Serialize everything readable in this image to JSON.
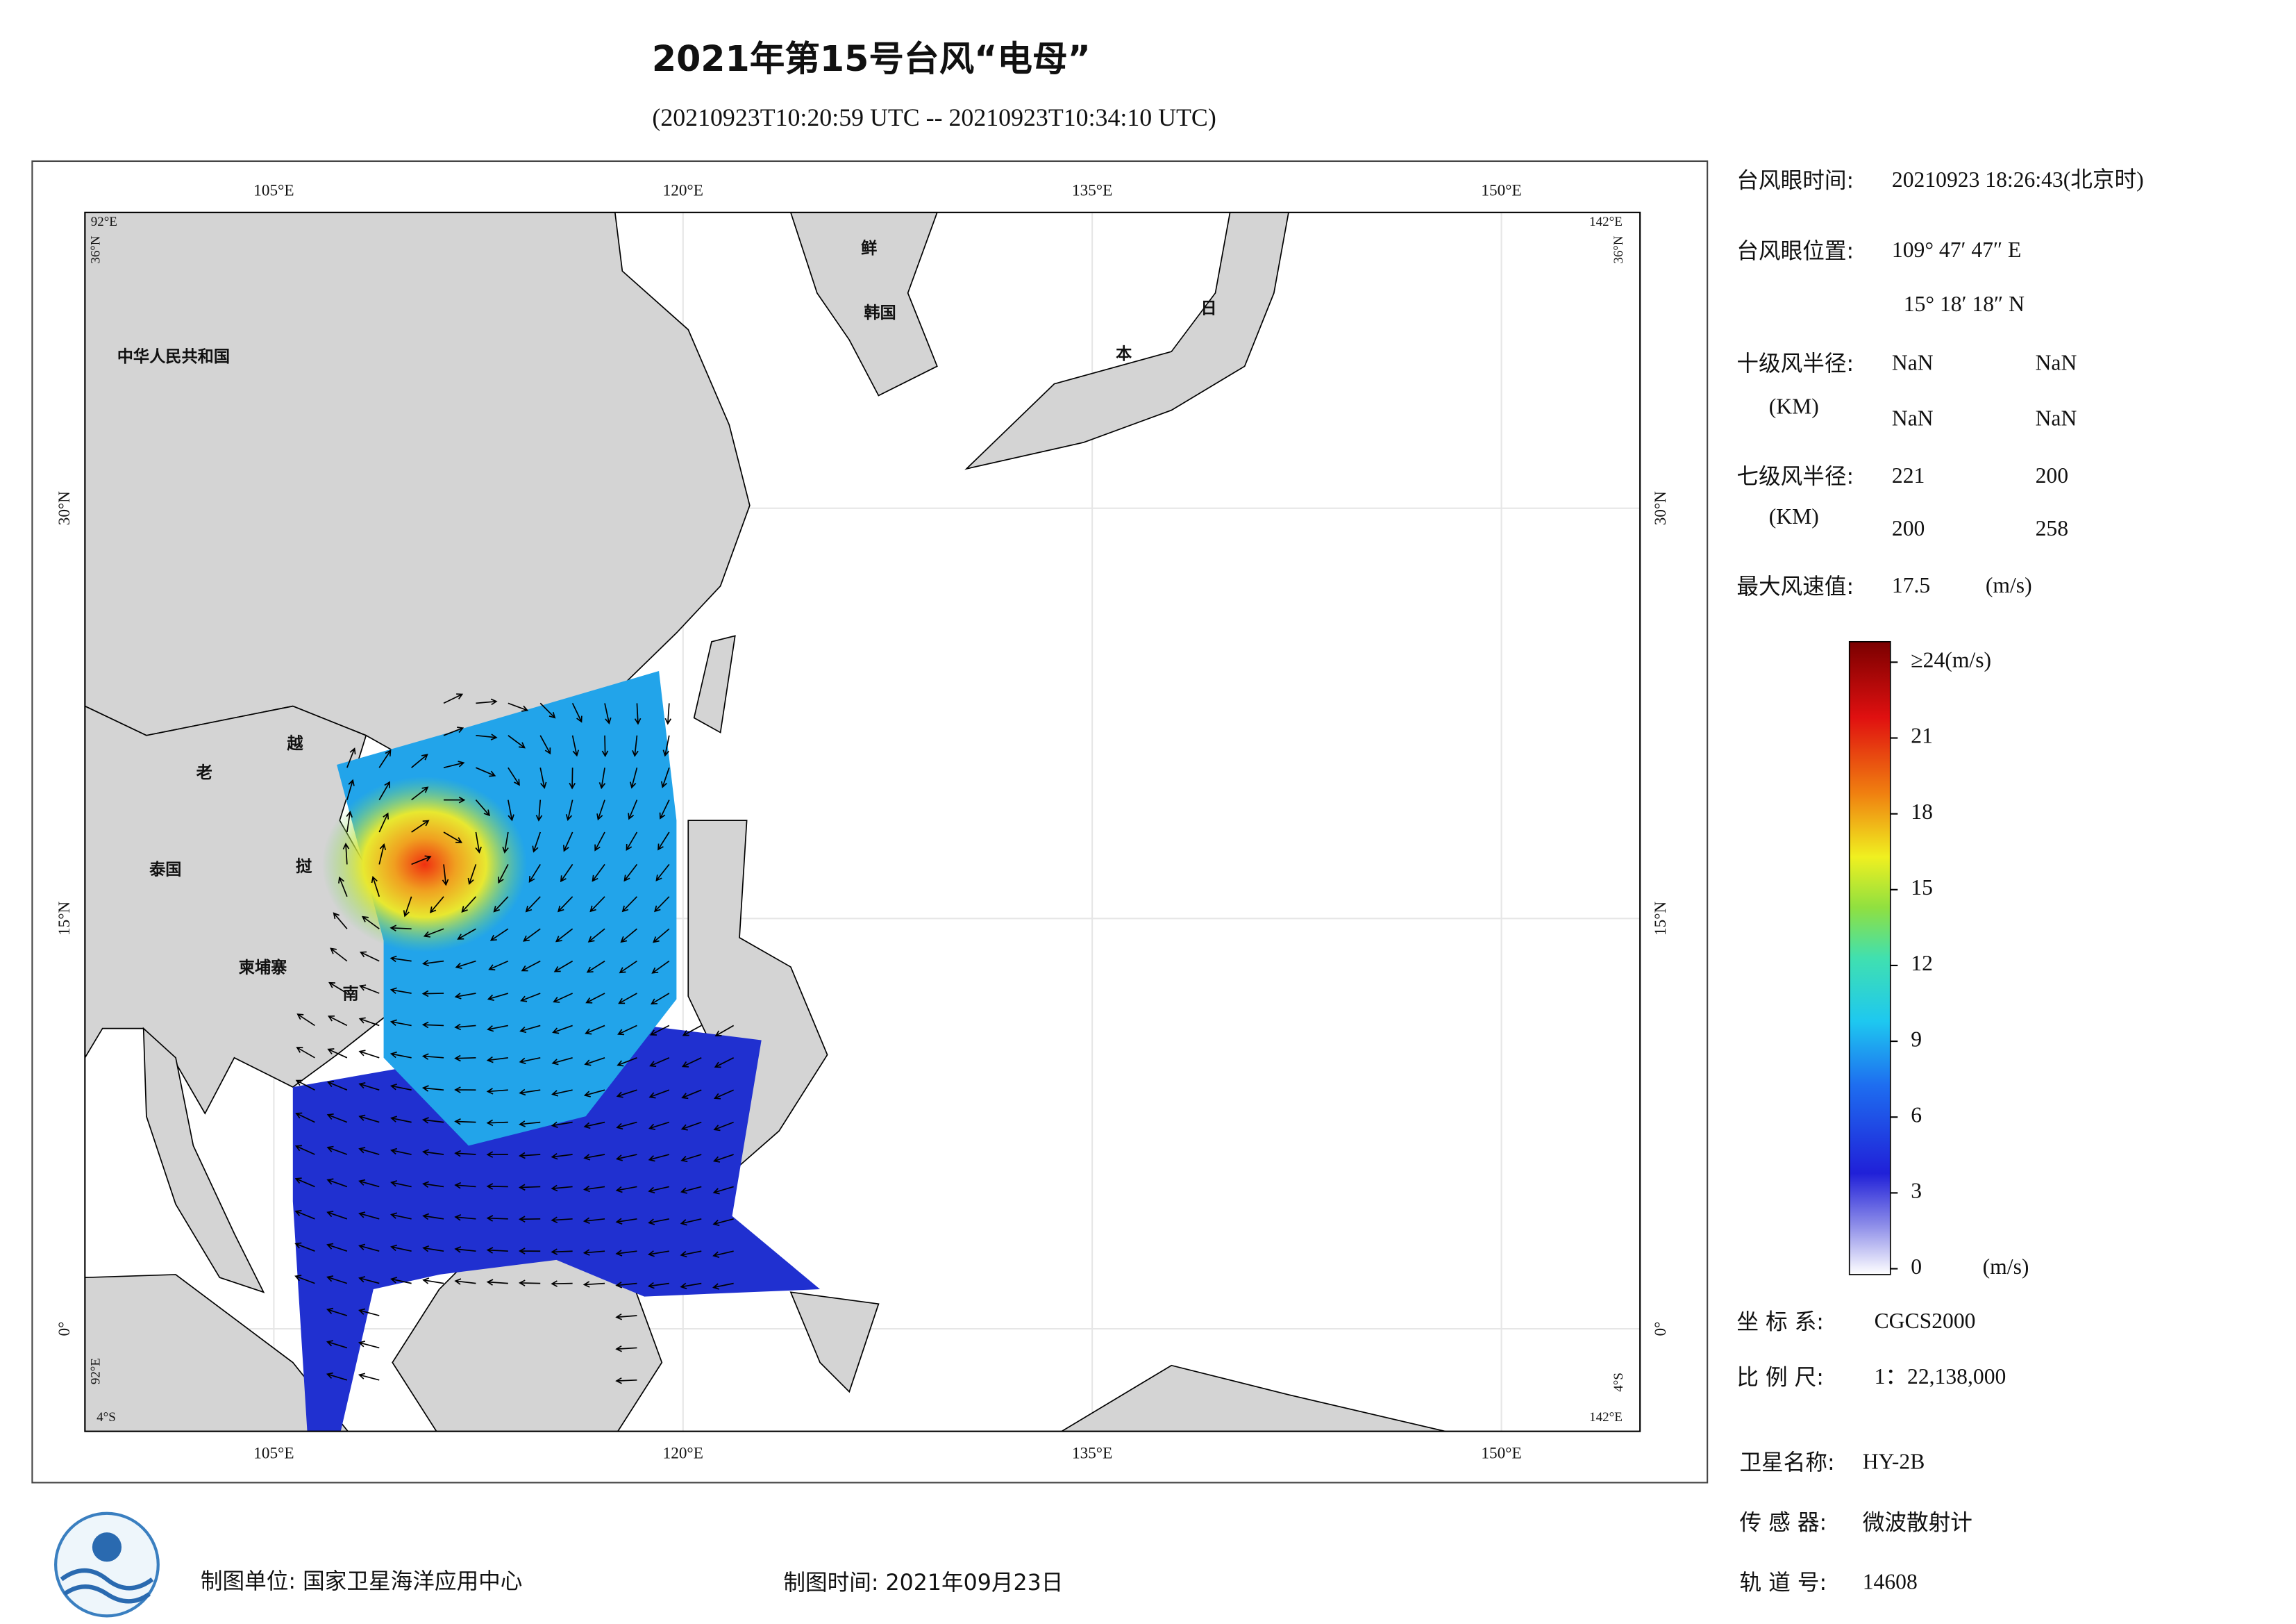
{
  "header": {
    "title": "2021年第15号台风“电母”",
    "subtitle": "(20210923T10:20:59 UTC -- 20210923T10:34:10 UTC)"
  },
  "map": {
    "lon_ticks": [
      {
        "value": 105,
        "label": "105°E"
      },
      {
        "value": 120,
        "label": "120°E"
      },
      {
        "value": 135,
        "label": "135°E"
      },
      {
        "value": 150,
        "label": "150°E"
      }
    ],
    "lat_ticks": [
      {
        "value": 30,
        "label": "30°N"
      },
      {
        "value": 15,
        "label": "15°N"
      },
      {
        "value": 0,
        "label": "0°"
      }
    ],
    "corner_labels": {
      "top_left_lon": "92°E",
      "top_left_lat": "36°N",
      "top_right_lon": "142°E",
      "top_right_lat": "36°N",
      "bottom_left_lon": "92°E",
      "bottom_left_lat": "4°S",
      "bottom_right_lon": "142°E",
      "bottom_right_lat": "4°S"
    },
    "places": [
      "中华人民共和国",
      "老",
      "越",
      "泰国",
      "挝",
      "柬埔寨",
      "南",
      "鲜",
      "韩国",
      "日",
      "本"
    ]
  },
  "info": {
    "eye_time": {
      "label": "台风眼时间:",
      "value": "20210923 18:26:43(北京时)"
    },
    "eye_position": {
      "label": "台风眼位置:",
      "lon": "109° 47′ 47″ E",
      "lat": "15° 18′ 18″ N"
    },
    "r10": {
      "label": "十级风半径:",
      "unit": "(KM)",
      "values": [
        "NaN",
        "NaN",
        "NaN",
        "NaN"
      ]
    },
    "r7": {
      "label": "七级风半径:",
      "unit": "(KM)",
      "values": [
        221,
        200,
        200,
        258
      ]
    },
    "max_wind": {
      "label": "最大风速值:",
      "value": 17.5,
      "unit": "(m/s)"
    }
  },
  "colorbar": {
    "lim": [
      0,
      24
    ],
    "ticks": [
      0,
      3,
      6,
      9,
      12,
      15,
      18,
      21,
      {
        "value": 24,
        "label": "≥24(m/s)"
      }
    ],
    "unit": "(m/s)"
  },
  "meta": {
    "crs": {
      "label": "坐 标 系:",
      "value": "CGCS2000"
    },
    "scale": {
      "label": "比 例 尺:",
      "value": "1：22,138,000"
    },
    "satellite": {
      "label": "卫星名称:",
      "value": "HY-2B"
    },
    "sensor": {
      "label": "传 感 器:",
      "value": "微波散射计"
    },
    "orbit": {
      "label": "轨 道 号:",
      "value": 14608
    }
  },
  "footer": {
    "unit": "制图单位: 国家卫星海洋应用中心",
    "date": "制图时间: 2021年09月23日"
  }
}
